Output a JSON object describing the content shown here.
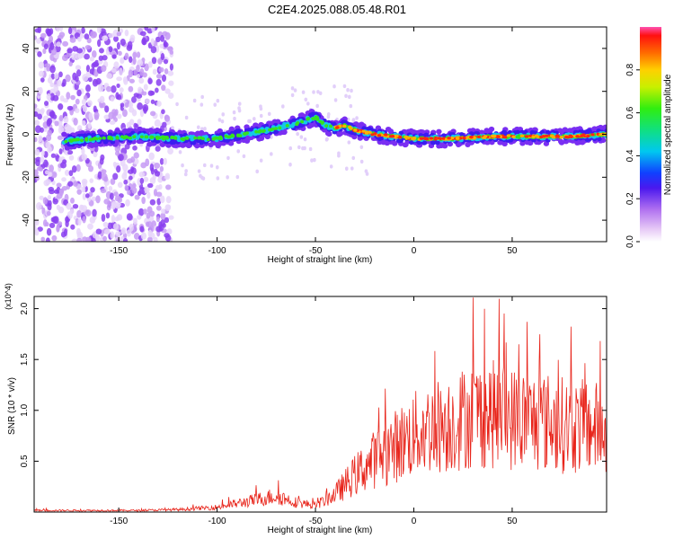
{
  "title": "C2E4.2025.088.05.48.R01",
  "chart_data": [
    {
      "type": "heatmap",
      "xlabel": "Height of straight line (km)",
      "ylabel": "Frequency (Hz)",
      "xlim": [
        -193,
        98
      ],
      "ylim": [
        -50,
        50
      ],
      "xticks": [
        -150,
        -100,
        -50,
        0,
        50
      ],
      "yticks": [
        -40,
        -20,
        0,
        20,
        40
      ],
      "grid": false,
      "colorbar": {
        "label": "Normalized spectral amplitude",
        "range": [
          0,
          1
        ],
        "ticks": [
          "0.0",
          "0.2",
          "0.4",
          "0.6",
          "0.8"
        ]
      },
      "ridge": {
        "x": [
          -175,
          -160,
          -140,
          -120,
          -100,
          -80,
          -60,
          -50,
          -45,
          -40,
          -35,
          -30,
          -20,
          -10,
          0,
          10,
          20,
          40,
          60,
          80,
          97
        ],
        "y": [
          -3,
          -2,
          -1,
          -2,
          -2,
          1,
          5,
          8,
          4,
          3,
          4,
          2,
          0,
          -1,
          -2,
          -2,
          -2,
          -1,
          -1,
          -1,
          0
        ]
      }
    },
    {
      "type": "line",
      "xlabel": "Height of straight line (km)",
      "ylabel": "SNR (10 * v/v)",
      "yscale_label": "(x10^4)",
      "xlim": [
        -193,
        98
      ],
      "ylim": [
        0,
        2.12
      ],
      "xticks": [
        -150,
        -100,
        -50,
        0,
        50
      ],
      "yticks": [
        "0.5",
        "1.0",
        "1.5",
        "2.0"
      ],
      "series": [
        {
          "color": "#e8241a",
          "envelope_x": [
            -193,
            -160,
            -140,
            -120,
            -100,
            -80,
            -70,
            -60,
            -50,
            -40,
            -30,
            -20,
            -10,
            0,
            10,
            20,
            30,
            40,
            50,
            60,
            70,
            80,
            90,
            97
          ],
          "envelope_y": [
            0.02,
            0.02,
            0.02,
            0.03,
            0.06,
            0.15,
            0.2,
            0.12,
            0.08,
            0.22,
            0.45,
            0.65,
            0.8,
            0.95,
            1.05,
            1.1,
            1.2,
            1.2,
            1.15,
            1.12,
            1.1,
            1.05,
            1.05,
            1.0
          ]
        }
      ]
    }
  ]
}
